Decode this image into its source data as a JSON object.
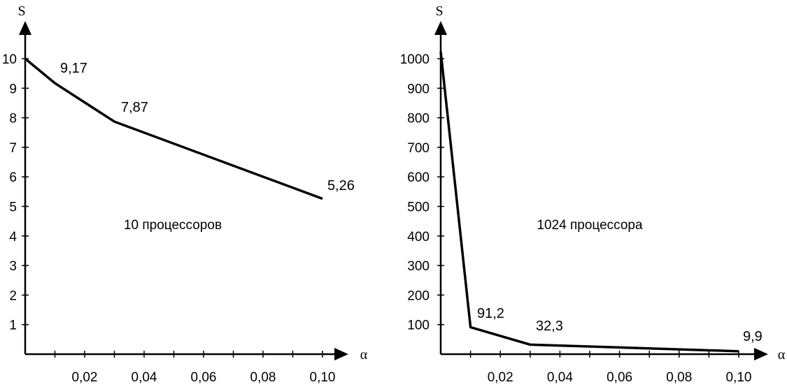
{
  "chart_data": [
    {
      "type": "line",
      "title": "",
      "annotation": "10 процессоров",
      "ylabel": "S",
      "xlabel": "α",
      "x_tick_labels": [
        "0,02",
        "0,04",
        "0,06",
        "0,08",
        "0,10"
      ],
      "x_ticks": [
        0.02,
        0.04,
        0.06,
        0.08,
        0.1
      ],
      "y_tick_labels": [
        "1",
        "2",
        "3",
        "4",
        "5",
        "6",
        "7",
        "8",
        "9",
        "10"
      ],
      "y_ticks": [
        1,
        2,
        3,
        4,
        5,
        6,
        7,
        8,
        9,
        10
      ],
      "xlim": [
        0,
        0.11
      ],
      "ylim": [
        0,
        11
      ],
      "x": [
        0,
        0.01,
        0.03,
        0.1
      ],
      "y": [
        10,
        9.17,
        7.87,
        5.26
      ],
      "point_labels": [
        "",
        "9,17",
        "7,87",
        "5,26"
      ],
      "grid": false,
      "line_color": "#000000"
    },
    {
      "type": "line",
      "title": "",
      "annotation": "1024 процессора",
      "ylabel": "S",
      "xlabel": "α",
      "x_tick_labels": [
        "0,02",
        "0,04",
        "0,06",
        "0,08",
        "0,10"
      ],
      "x_ticks": [
        0.02,
        0.04,
        0.06,
        0.08,
        0.1
      ],
      "y_tick_labels": [
        "100",
        "200",
        "300",
        "400",
        "500",
        "600",
        "700",
        "800",
        "900",
        "1000"
      ],
      "y_ticks": [
        100,
        200,
        300,
        400,
        500,
        600,
        700,
        800,
        900,
        1000
      ],
      "xlim": [
        0,
        0.11
      ],
      "ylim": [
        0,
        1100
      ],
      "x": [
        0,
        0.01,
        0.03,
        0.1
      ],
      "y": [
        1024,
        91.2,
        32.3,
        9.9
      ],
      "point_labels": [
        "",
        "91,2",
        "32,3",
        "9,9"
      ],
      "grid": false,
      "line_color": "#000000"
    }
  ]
}
